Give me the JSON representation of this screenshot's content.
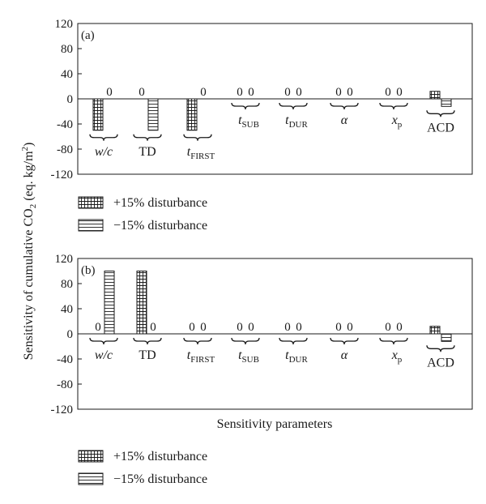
{
  "figure": {
    "ylabel_prefix": "Sensitivity of cumulative CO",
    "ylabel_sub": "2",
    "ylabel_mid": " (eq. kg/m",
    "ylabel_sup": "2",
    "ylabel_suffix": ")",
    "xlabel": "Sensitivity parameters",
    "colors": {
      "axis": "#1a1a1a",
      "bar_fill": "#ffffff",
      "pattern_line": "#1a1a1a"
    }
  },
  "chart_data": [
    {
      "type": "bar",
      "panel_label": "(a)",
      "categories": [
        "w/c",
        "TD",
        "tFIRST",
        "tSUB",
        "tDUR",
        "α",
        "xp",
        "ACD"
      ],
      "ylim": [
        -120,
        120
      ],
      "yticks": [
        -120,
        -80,
        -40,
        0,
        40,
        80,
        120
      ],
      "grid": false,
      "series": [
        {
          "name": "+15% disturbance",
          "pattern": "grid",
          "values": [
            -50,
            0,
            -50,
            0,
            0,
            0,
            0,
            12
          ]
        },
        {
          "name": "−15% disturbance",
          "pattern": "horizontal",
          "values": [
            0,
            -50,
            0,
            0,
            0,
            0,
            0,
            -12
          ]
        }
      ],
      "zero_label": "0",
      "legend_position": "below"
    },
    {
      "type": "bar",
      "panel_label": "(b)",
      "categories": [
        "w/c",
        "TD",
        "tFIRST",
        "tSUB",
        "tDUR",
        "α",
        "xp",
        "ACD"
      ],
      "ylim": [
        -120,
        120
      ],
      "yticks": [
        -120,
        -80,
        -40,
        0,
        40,
        80,
        120
      ],
      "grid": false,
      "series": [
        {
          "name": "+15% disturbance",
          "pattern": "grid",
          "values": [
            0,
            100,
            0,
            0,
            0,
            0,
            0,
            12
          ]
        },
        {
          "name": "−15% disturbance",
          "pattern": "horizontal",
          "values": [
            100,
            0,
            0,
            0,
            0,
            0,
            0,
            -12
          ]
        }
      ],
      "zero_label": "0",
      "legend_position": "below"
    }
  ],
  "category_labels": [
    {
      "main": "w/c",
      "sub": "",
      "italic": true
    },
    {
      "main": "TD",
      "sub": "",
      "italic": false
    },
    {
      "main": "t",
      "sub": "FIRST",
      "italic": true
    },
    {
      "main": "t",
      "sub": "SUB",
      "italic": true
    },
    {
      "main": "t",
      "sub": "DUR",
      "italic": true
    },
    {
      "main": "α",
      "sub": "",
      "italic": true
    },
    {
      "main": "x",
      "sub": "p",
      "italic": true
    },
    {
      "main": "ACD",
      "sub": "",
      "italic": false
    }
  ]
}
